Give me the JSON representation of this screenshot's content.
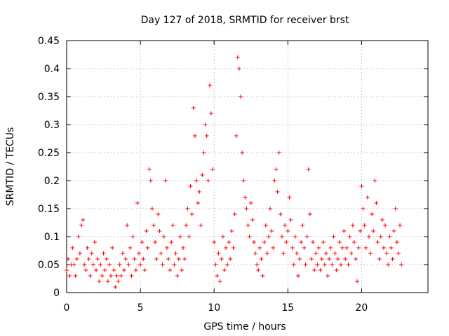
{
  "chart_data": {
    "type": "scatter",
    "title": "Day 127 of 2018, SRMTID for receiver brst",
    "xlabel": "GPS time / hours",
    "ylabel": "SRMTID / TECUs",
    "xlim": [
      0,
      24.5
    ],
    "ylim": [
      0,
      0.45
    ],
    "xticks": [
      0,
      5,
      10,
      15,
      20
    ],
    "xtick_labels": [
      "0",
      "5",
      "10",
      "15",
      "20"
    ],
    "yticks": [
      0,
      0.05,
      0.1,
      0.15,
      0.2,
      0.25,
      0.3,
      0.35,
      0.4,
      0.45
    ],
    "ytick_labels": [
      "0",
      "0.05",
      "0.1",
      "0.15",
      "0.2",
      "0.25",
      "0.3",
      "0.35",
      "0.4",
      "0.45"
    ],
    "grid": true,
    "marker": "+",
    "color": "#ff0000",
    "series": [
      {
        "name": "SRMTID",
        "points": [
          [
            0.0,
            0.04
          ],
          [
            0.1,
            0.06
          ],
          [
            0.2,
            0.03
          ],
          [
            0.3,
            0.05
          ],
          [
            0.4,
            0.08
          ],
          [
            0.5,
            0.05
          ],
          [
            0.6,
            0.03
          ],
          [
            0.7,
            0.06
          ],
          [
            0.8,
            0.1
          ],
          [
            0.9,
            0.07
          ],
          [
            1.0,
            0.12
          ],
          [
            1.1,
            0.13
          ],
          [
            1.2,
            0.05
          ],
          [
            1.3,
            0.04
          ],
          [
            1.4,
            0.08
          ],
          [
            1.5,
            0.06
          ],
          [
            1.6,
            0.03
          ],
          [
            1.7,
            0.07
          ],
          [
            1.8,
            0.05
          ],
          [
            1.9,
            0.09
          ],
          [
            2.0,
            0.04
          ],
          [
            2.1,
            0.06
          ],
          [
            2.2,
            0.02
          ],
          [
            2.3,
            0.05
          ],
          [
            2.4,
            0.03
          ],
          [
            2.5,
            0.07
          ],
          [
            2.6,
            0.04
          ],
          [
            2.7,
            0.06
          ],
          [
            2.8,
            0.02
          ],
          [
            2.9,
            0.05
          ],
          [
            3.0,
            0.03
          ],
          [
            3.1,
            0.08
          ],
          [
            3.2,
            0.04
          ],
          [
            3.3,
            0.01
          ],
          [
            3.4,
            0.03
          ],
          [
            3.5,
            0.02
          ],
          [
            3.6,
            0.05
          ],
          [
            3.7,
            0.03
          ],
          [
            3.8,
            0.07
          ],
          [
            3.9,
            0.04
          ],
          [
            4.0,
            0.06
          ],
          [
            4.1,
            0.12
          ],
          [
            4.2,
            0.05
          ],
          [
            4.3,
            0.08
          ],
          [
            4.4,
            0.03
          ],
          [
            4.5,
            0.1
          ],
          [
            4.6,
            0.06
          ],
          [
            4.7,
            0.04
          ],
          [
            4.8,
            0.16
          ],
          [
            4.9,
            0.07
          ],
          [
            5.0,
            0.05
          ],
          [
            5.1,
            0.09
          ],
          [
            5.2,
            0.06
          ],
          [
            5.3,
            0.04
          ],
          [
            5.4,
            0.11
          ],
          [
            5.5,
            0.08
          ],
          [
            5.6,
            0.22
          ],
          [
            5.7,
            0.2
          ],
          [
            5.8,
            0.15
          ],
          [
            5.9,
            0.12
          ],
          [
            6.0,
            0.09
          ],
          [
            6.1,
            0.06
          ],
          [
            6.2,
            0.14
          ],
          [
            6.3,
            0.11
          ],
          [
            6.4,
            0.07
          ],
          [
            6.5,
            0.05
          ],
          [
            6.6,
            0.1
          ],
          [
            6.7,
            0.2
          ],
          [
            6.8,
            0.08
          ],
          [
            6.9,
            0.06
          ],
          [
            7.0,
            0.04
          ],
          [
            7.1,
            0.09
          ],
          [
            7.2,
            0.12
          ],
          [
            7.3,
            0.05
          ],
          [
            7.4,
            0.07
          ],
          [
            7.5,
            0.03
          ],
          [
            7.6,
            0.06
          ],
          [
            7.7,
            0.1
          ],
          [
            7.8,
            0.04
          ],
          [
            7.9,
            0.08
          ],
          [
            8.0,
            0.06
          ],
          [
            8.1,
            0.12
          ],
          [
            8.2,
            0.15
          ],
          [
            8.3,
            0.1
          ],
          [
            8.4,
            0.19
          ],
          [
            8.5,
            0.14
          ],
          [
            8.6,
            0.33
          ],
          [
            8.7,
            0.28
          ],
          [
            8.8,
            0.2
          ],
          [
            8.9,
            0.16
          ],
          [
            9.0,
            0.18
          ],
          [
            9.1,
            0.12
          ],
          [
            9.2,
            0.21
          ],
          [
            9.3,
            0.25
          ],
          [
            9.4,
            0.3
          ],
          [
            9.5,
            0.28
          ],
          [
            9.6,
            0.2
          ],
          [
            9.7,
            0.37
          ],
          [
            9.8,
            0.32
          ],
          [
            9.9,
            0.22
          ],
          [
            10.0,
            0.09
          ],
          [
            10.1,
            0.05
          ],
          [
            10.2,
            0.03
          ],
          [
            10.3,
            0.07
          ],
          [
            10.4,
            0.02
          ],
          [
            10.5,
            0.06
          ],
          [
            10.6,
            0.1
          ],
          [
            10.7,
            0.04
          ],
          [
            10.8,
            0.08
          ],
          [
            10.9,
            0.05
          ],
          [
            11.0,
            0.09
          ],
          [
            11.1,
            0.06
          ],
          [
            11.2,
            0.11
          ],
          [
            11.3,
            0.08
          ],
          [
            11.4,
            0.14
          ],
          [
            11.5,
            0.28
          ],
          [
            11.6,
            0.42
          ],
          [
            11.7,
            0.4
          ],
          [
            11.8,
            0.35
          ],
          [
            11.9,
            0.25
          ],
          [
            12.0,
            0.2
          ],
          [
            12.1,
            0.17
          ],
          [
            12.2,
            0.15
          ],
          [
            12.3,
            0.12
          ],
          [
            12.4,
            0.1
          ],
          [
            12.5,
            0.16
          ],
          [
            12.6,
            0.13
          ],
          [
            12.7,
            0.09
          ],
          [
            12.8,
            0.07
          ],
          [
            12.9,
            0.05
          ],
          [
            13.0,
            0.04
          ],
          [
            13.1,
            0.08
          ],
          [
            13.2,
            0.06
          ],
          [
            13.3,
            0.03
          ],
          [
            13.4,
            0.09
          ],
          [
            13.5,
            0.12
          ],
          [
            13.6,
            0.07
          ],
          [
            13.7,
            0.1
          ],
          [
            13.8,
            0.15
          ],
          [
            13.9,
            0.11
          ],
          [
            14.0,
            0.08
          ],
          [
            14.1,
            0.2
          ],
          [
            14.2,
            0.22
          ],
          [
            14.3,
            0.18
          ],
          [
            14.4,
            0.25
          ],
          [
            14.5,
            0.14
          ],
          [
            14.6,
            0.1
          ],
          [
            14.7,
            0.07
          ],
          [
            14.8,
            0.12
          ],
          [
            14.9,
            0.09
          ],
          [
            15.0,
            0.11
          ],
          [
            15.1,
            0.17
          ],
          [
            15.2,
            0.13
          ],
          [
            15.3,
            0.08
          ],
          [
            15.4,
            0.05
          ],
          [
            15.5,
            0.1
          ],
          [
            15.6,
            0.07
          ],
          [
            15.7,
            0.03
          ],
          [
            15.8,
            0.06
          ],
          [
            15.9,
            0.09
          ],
          [
            16.0,
            0.12
          ],
          [
            16.1,
            0.08
          ],
          [
            16.2,
            0.05
          ],
          [
            16.3,
            0.1
          ],
          [
            16.4,
            0.22
          ],
          [
            16.5,
            0.14
          ],
          [
            16.6,
            0.06
          ],
          [
            16.7,
            0.09
          ],
          [
            16.8,
            0.04
          ],
          [
            16.9,
            0.07
          ],
          [
            17.0,
            0.05
          ],
          [
            17.1,
            0.08
          ],
          [
            17.2,
            0.04
          ],
          [
            17.3,
            0.06
          ],
          [
            17.4,
            0.09
          ],
          [
            17.5,
            0.05
          ],
          [
            17.6,
            0.07
          ],
          [
            17.7,
            0.03
          ],
          [
            17.8,
            0.06
          ],
          [
            17.9,
            0.08
          ],
          [
            18.0,
            0.05
          ],
          [
            18.1,
            0.1
          ],
          [
            18.2,
            0.07
          ],
          [
            18.3,
            0.04
          ],
          [
            18.4,
            0.06
          ],
          [
            18.5,
            0.09
          ],
          [
            18.6,
            0.05
          ],
          [
            18.7,
            0.08
          ],
          [
            18.8,
            0.11
          ],
          [
            18.9,
            0.06
          ],
          [
            19.0,
            0.08
          ],
          [
            19.1,
            0.05
          ],
          [
            19.2,
            0.1
          ],
          [
            19.3,
            0.07
          ],
          [
            19.4,
            0.12
          ],
          [
            19.5,
            0.09
          ],
          [
            19.6,
            0.06
          ],
          [
            19.7,
            0.02
          ],
          [
            19.8,
            0.08
          ],
          [
            19.9,
            0.11
          ],
          [
            20.0,
            0.19
          ],
          [
            20.1,
            0.15
          ],
          [
            20.2,
            0.12
          ],
          [
            20.3,
            0.08
          ],
          [
            20.4,
            0.17
          ],
          [
            20.5,
            0.1
          ],
          [
            20.6,
            0.07
          ],
          [
            20.7,
            0.14
          ],
          [
            20.8,
            0.11
          ],
          [
            20.9,
            0.2
          ],
          [
            21.0,
            0.16
          ],
          [
            21.1,
            0.09
          ],
          [
            21.2,
            0.06
          ],
          [
            21.3,
            0.1
          ],
          [
            21.4,
            0.13
          ],
          [
            21.5,
            0.08
          ],
          [
            21.6,
            0.12
          ],
          [
            21.7,
            0.07
          ],
          [
            21.8,
            0.05
          ],
          [
            21.9,
            0.1
          ],
          [
            22.0,
            0.08
          ],
          [
            22.1,
            0.06
          ],
          [
            22.2,
            0.11
          ],
          [
            22.3,
            0.15
          ],
          [
            22.4,
            0.09
          ],
          [
            22.5,
            0.07
          ],
          [
            22.6,
            0.12
          ],
          [
            22.7,
            0.05
          ]
        ]
      }
    ]
  }
}
